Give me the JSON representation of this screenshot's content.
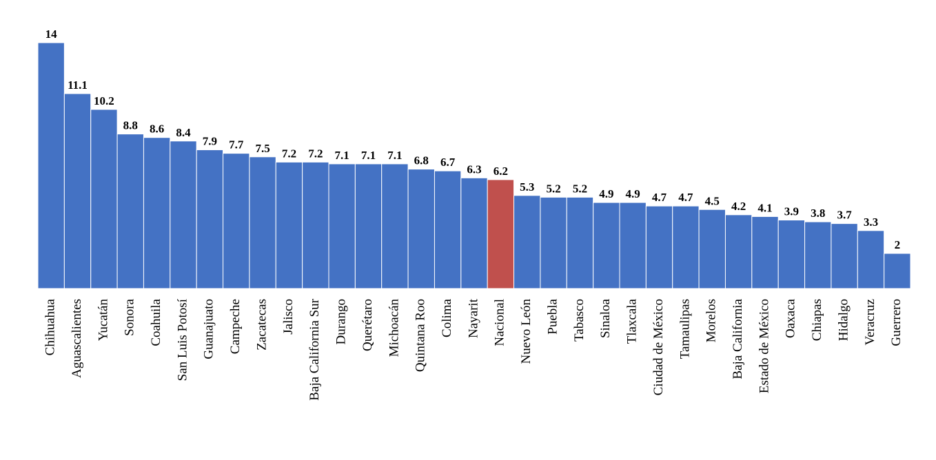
{
  "chart_data": {
    "type": "bar",
    "categories": [
      "Chihuahua",
      "Aguascalientes",
      "Yucatán",
      "Sonora",
      "Coahuila",
      "San Luis Potosí",
      "Guanajuato",
      "Campeche",
      "Zacatecas",
      "Jalisco",
      "Baja California Sur",
      "Durango",
      "Querétaro",
      "Michoacán",
      "Quintana Roo",
      "Colima",
      "Nayarit",
      "Nacional",
      "Nuevo León",
      "Puebla",
      "Tabasco",
      "Sinaloa",
      "Tlaxcala",
      "Ciudad de México",
      "Tamaulipas",
      "Morelos",
      "Baja California",
      "Estado de México",
      "Oaxaca",
      "Chiapas",
      "Hidalgo",
      "Veracruz",
      "Guerrero"
    ],
    "values": [
      14,
      11.1,
      10.2,
      8.8,
      8.6,
      8.4,
      7.9,
      7.7,
      7.5,
      7.2,
      7.2,
      7.1,
      7.1,
      7.1,
      6.8,
      6.7,
      6.3,
      6.2,
      5.3,
      5.2,
      5.2,
      4.9,
      4.9,
      4.7,
      4.7,
      4.5,
      4.2,
      4.1,
      3.9,
      3.8,
      3.7,
      3.3,
      2
    ],
    "colors": [
      "#4472c4",
      "#4472c4",
      "#4472c4",
      "#4472c4",
      "#4472c4",
      "#4472c4",
      "#4472c4",
      "#4472c4",
      "#4472c4",
      "#4472c4",
      "#4472c4",
      "#4472c4",
      "#4472c4",
      "#4472c4",
      "#4472c4",
      "#4472c4",
      "#4472c4",
      "#c0504d",
      "#4472c4",
      "#4472c4",
      "#4472c4",
      "#4472c4",
      "#4472c4",
      "#4472c4",
      "#4472c4",
      "#4472c4",
      "#4472c4",
      "#4472c4",
      "#4472c4",
      "#4472c4",
      "#4472c4",
      "#4472c4",
      "#4472c4"
    ]
  }
}
